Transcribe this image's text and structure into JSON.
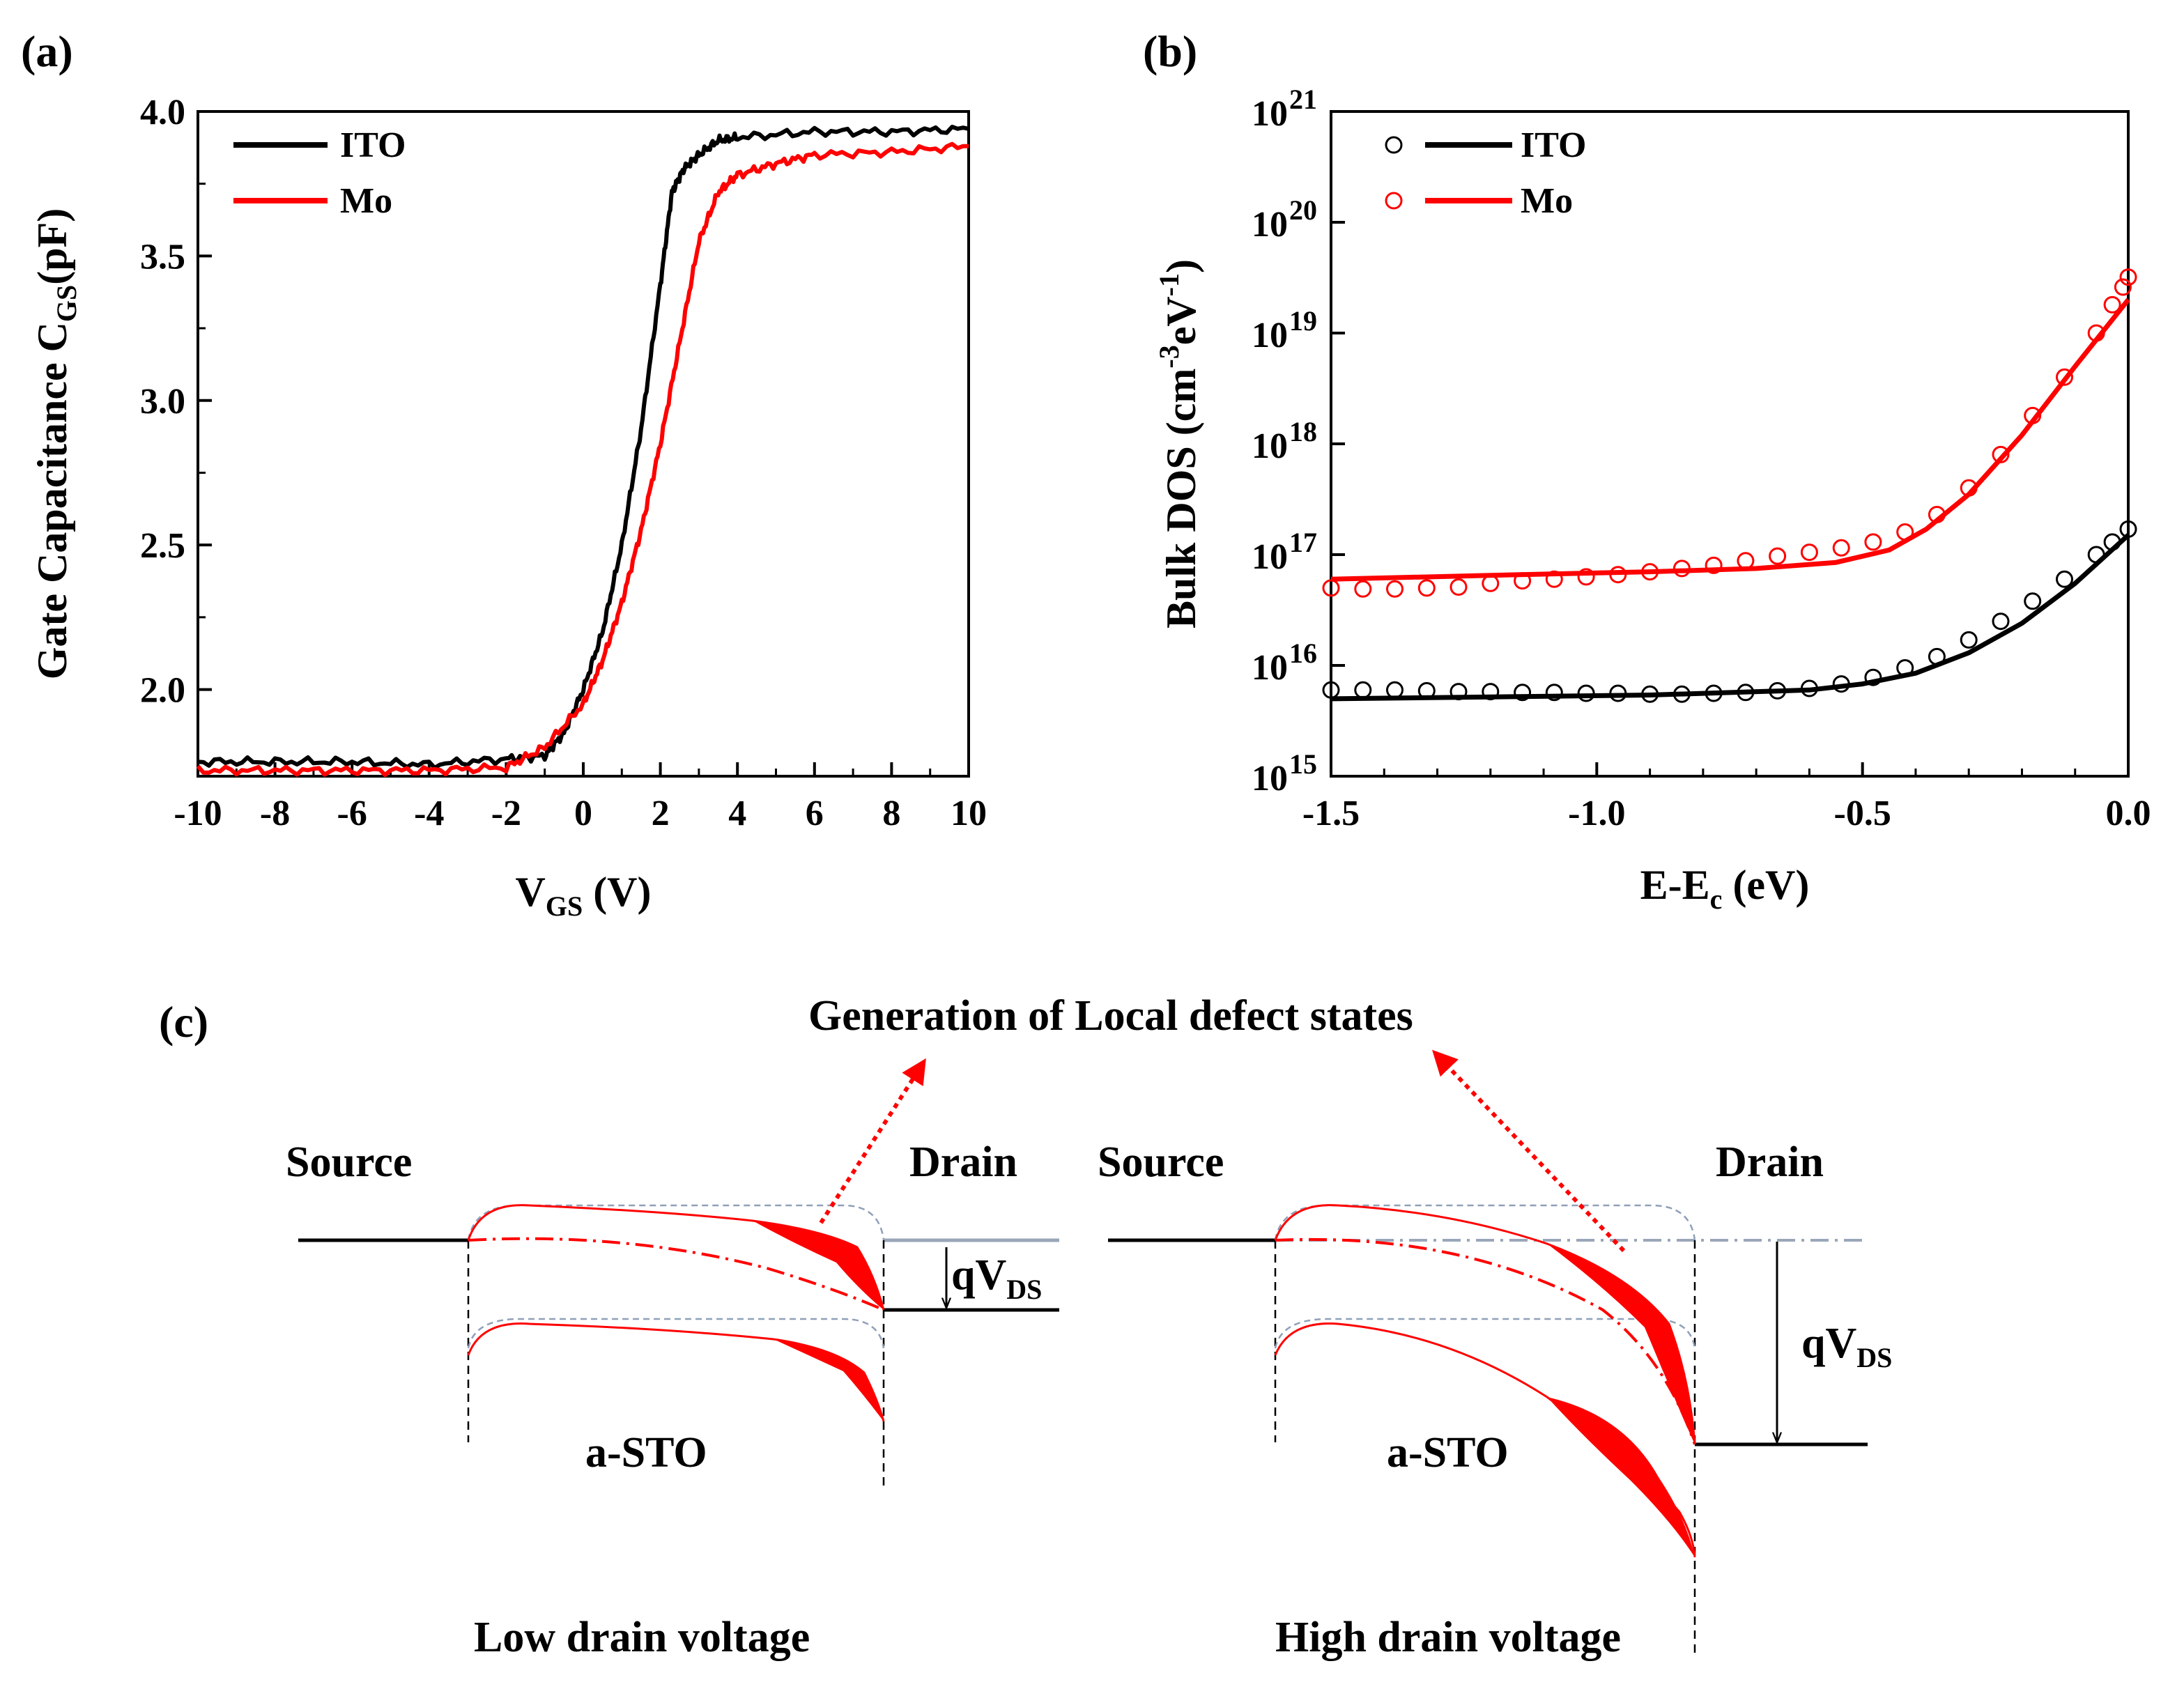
{
  "panels": {
    "a": "(a)",
    "b": "(b)",
    "c": "(c)"
  },
  "chart_data": [
    {
      "id": "a",
      "type": "line",
      "title": "",
      "xlabel_main": "V",
      "xlabel_sub": "GS",
      "xlabel_tail": " (V)",
      "ylabel_main": "Gate Capacitance C",
      "ylabel_sub": "GS",
      "ylabel_tail": "(pF)",
      "xlim": [
        -10,
        10
      ],
      "ylim": [
        1.7,
        4.0
      ],
      "xticks": [
        "-10",
        "-8",
        "-6",
        "-4",
        "-2",
        "0",
        "2",
        "4",
        "6",
        "8",
        "10"
      ],
      "yticks": [
        "2.0",
        "2.5",
        "3.0",
        "3.5",
        "4.0"
      ],
      "legend_position": "top-left",
      "series": [
        {
          "name": "ITO",
          "color": "#000000",
          "x": [
            -10,
            -8,
            -6,
            -4,
            -2,
            -1,
            -0.5,
            0,
            0.5,
            1,
            1.5,
            2,
            2.3,
            2.6,
            3,
            3.5,
            4,
            6,
            8,
            10
          ],
          "y": [
            1.75,
            1.75,
            1.75,
            1.74,
            1.76,
            1.77,
            1.85,
            2.0,
            2.2,
            2.5,
            2.9,
            3.4,
            3.72,
            3.8,
            3.85,
            3.9,
            3.91,
            3.93,
            3.93,
            3.94
          ]
        },
        {
          "name": "Mo",
          "color": "#ff0000",
          "x": [
            -10,
            -8,
            -6,
            -4,
            -2,
            -1,
            0,
            0.5,
            1,
            1.5,
            2,
            2.5,
            3,
            3.5,
            4,
            5,
            6,
            8,
            10
          ],
          "y": [
            1.72,
            1.72,
            1.72,
            1.72,
            1.73,
            1.8,
            1.95,
            2.1,
            2.3,
            2.55,
            2.85,
            3.2,
            3.55,
            3.72,
            3.78,
            3.82,
            3.85,
            3.86,
            3.88
          ]
        }
      ]
    },
    {
      "id": "b",
      "type": "scatter+line",
      "title": "",
      "xlabel_main": "E-E",
      "xlabel_sub": "c",
      "xlabel_tail": " (eV)",
      "ylabel_main": "Bulk DOS (cm",
      "ylabel_sup1": "-3",
      "ylabel_mid": "eV",
      "ylabel_sup2": "-1",
      "ylabel_tail": ")",
      "xlim": [
        -1.5,
        0.0
      ],
      "ylim_log10": [
        15,
        21
      ],
      "xticks": [
        "-1.5",
        "-1.0",
        "-0.5",
        "0.0"
      ],
      "yticks_base": "10",
      "yticks_exp": [
        "15",
        "16",
        "17",
        "18",
        "19",
        "20",
        "21"
      ],
      "legend_position": "top-left",
      "series": [
        {
          "name": "ITO",
          "color": "#000000",
          "points_x": [
            -1.5,
            -1.44,
            -1.38,
            -1.32,
            -1.26,
            -1.2,
            -1.14,
            -1.08,
            -1.02,
            -0.96,
            -0.9,
            -0.84,
            -0.78,
            -0.72,
            -0.66,
            -0.6,
            -0.54,
            -0.48,
            -0.42,
            -0.36,
            -0.3,
            -0.24,
            -0.18,
            -0.12,
            -0.06,
            -0.03,
            0
          ],
          "points_y": [
            6000000000000000.0,
            6000000000000000.0,
            6000000000000000.0,
            5900000000000000.0,
            5800000000000000.0,
            5800000000000000.0,
            5700000000000000.0,
            5700000000000000.0,
            5600000000000000.0,
            5600000000000000.0,
            5500000000000000.0,
            5500000000000000.0,
            5600000000000000.0,
            5700000000000000.0,
            5900000000000000.0,
            6200000000000000.0,
            6800000000000000.0,
            7800000000000000.0,
            9500000000000000.0,
            1.2e+16,
            1.7e+16,
            2.5e+16,
            3.8e+16,
            6e+16,
            1e+17,
            1.3e+17,
            1.7e+17
          ],
          "fit_x": [
            -1.5,
            -1.2,
            -0.9,
            -0.6,
            -0.5,
            -0.4,
            -0.3,
            -0.2,
            -0.1,
            0
          ],
          "fit_y": [
            5000000000000000.0,
            5200000000000000.0,
            5400000000000000.0,
            6000000000000000.0,
            6800000000000000.0,
            8500000000000000.0,
            1.3e+16,
            2.4e+16,
            5.5e+16,
            1.5e+17
          ]
        },
        {
          "name": "Mo",
          "color": "#ff0000",
          "points_x": [
            -1.5,
            -1.44,
            -1.38,
            -1.32,
            -1.26,
            -1.2,
            -1.14,
            -1.08,
            -1.02,
            -0.96,
            -0.9,
            -0.84,
            -0.78,
            -0.72,
            -0.66,
            -0.6,
            -0.54,
            -0.48,
            -0.42,
            -0.36,
            -0.3,
            -0.24,
            -0.18,
            -0.12,
            -0.06,
            -0.03,
            -0.01,
            0
          ],
          "points_y": [
            5e+16,
            4.9e+16,
            4.9e+16,
            5e+16,
            5.1e+16,
            5.5e+16,
            5.8e+16,
            6e+16,
            6.3e+16,
            6.6e+16,
            7e+16,
            7.5e+16,
            8e+16,
            8.8e+16,
            9.7e+16,
            1.05e+17,
            1.15e+17,
            1.3e+17,
            1.6e+17,
            2.3e+17,
            4e+17,
            8e+17,
            1.8e+18,
            4e+18,
            1e+19,
            1.8e+19,
            2.6e+19,
            3.2e+19
          ],
          "fit_x": [
            -1.5,
            -1.2,
            -0.9,
            -0.7,
            -0.55,
            -0.45,
            -0.38,
            -0.3,
            -0.2,
            -0.1,
            0
          ],
          "fit_y": [
            6e+16,
            6.5e+16,
            7e+16,
            7.5e+16,
            8.5e+16,
            1.1e+17,
            1.7e+17,
            3.5e+17,
            1.2e+18,
            5e+18,
            2e+19
          ]
        }
      ]
    }
  ],
  "diagram_c": {
    "heading": "Generation of Local defect states",
    "low": {
      "source": "Source",
      "drain": "Drain",
      "channel": "a-STO",
      "bias_main": "qV",
      "bias_sub": "DS",
      "caption": "Low drain voltage"
    },
    "high": {
      "source": "Source",
      "drain": "Drain",
      "channel": "a-STO",
      "bias_main": "qV",
      "bias_sub": "DS",
      "caption": "High drain voltage"
    }
  },
  "colors": {
    "ito": "#000000",
    "mo": "#ff0000",
    "band_dash": "#8fa0b8",
    "fermi": "#9aa6b8"
  }
}
